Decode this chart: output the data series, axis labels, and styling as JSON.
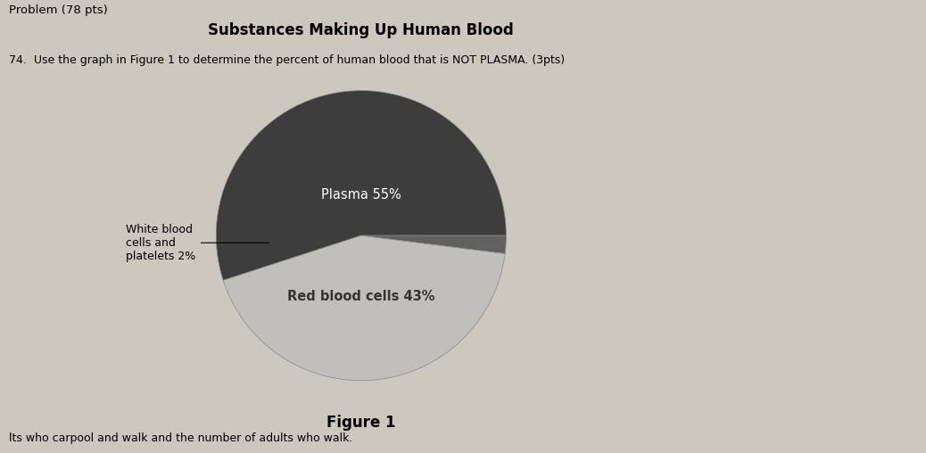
{
  "title": "Substances Making Up Human Blood",
  "figure_label": "Figure 1",
  "slices": [
    55,
    2,
    43
  ],
  "colors": [
    "#3d3d3d",
    "#606060",
    "#c0bfbc"
  ],
  "startangle": 198,
  "background_color": "#ccc8c0",
  "title_fontsize": 12,
  "label_fontsize": 10.5,
  "figure_label_fontsize": 12,
  "problem_text": "Problem (78 pts)",
  "question_text": "74.  Use the graph in Figure 1 to determine the percent of human blood that is NOT PLASMA. (3pts)",
  "bottom_text": "lts who carpool and walk and the number of adults who walk.",
  "plasma_label": "Plasma 55%",
  "rbc_label": "Red blood cells 43%",
  "wbc_label": "White blood\ncells and\nplatelets 2%"
}
